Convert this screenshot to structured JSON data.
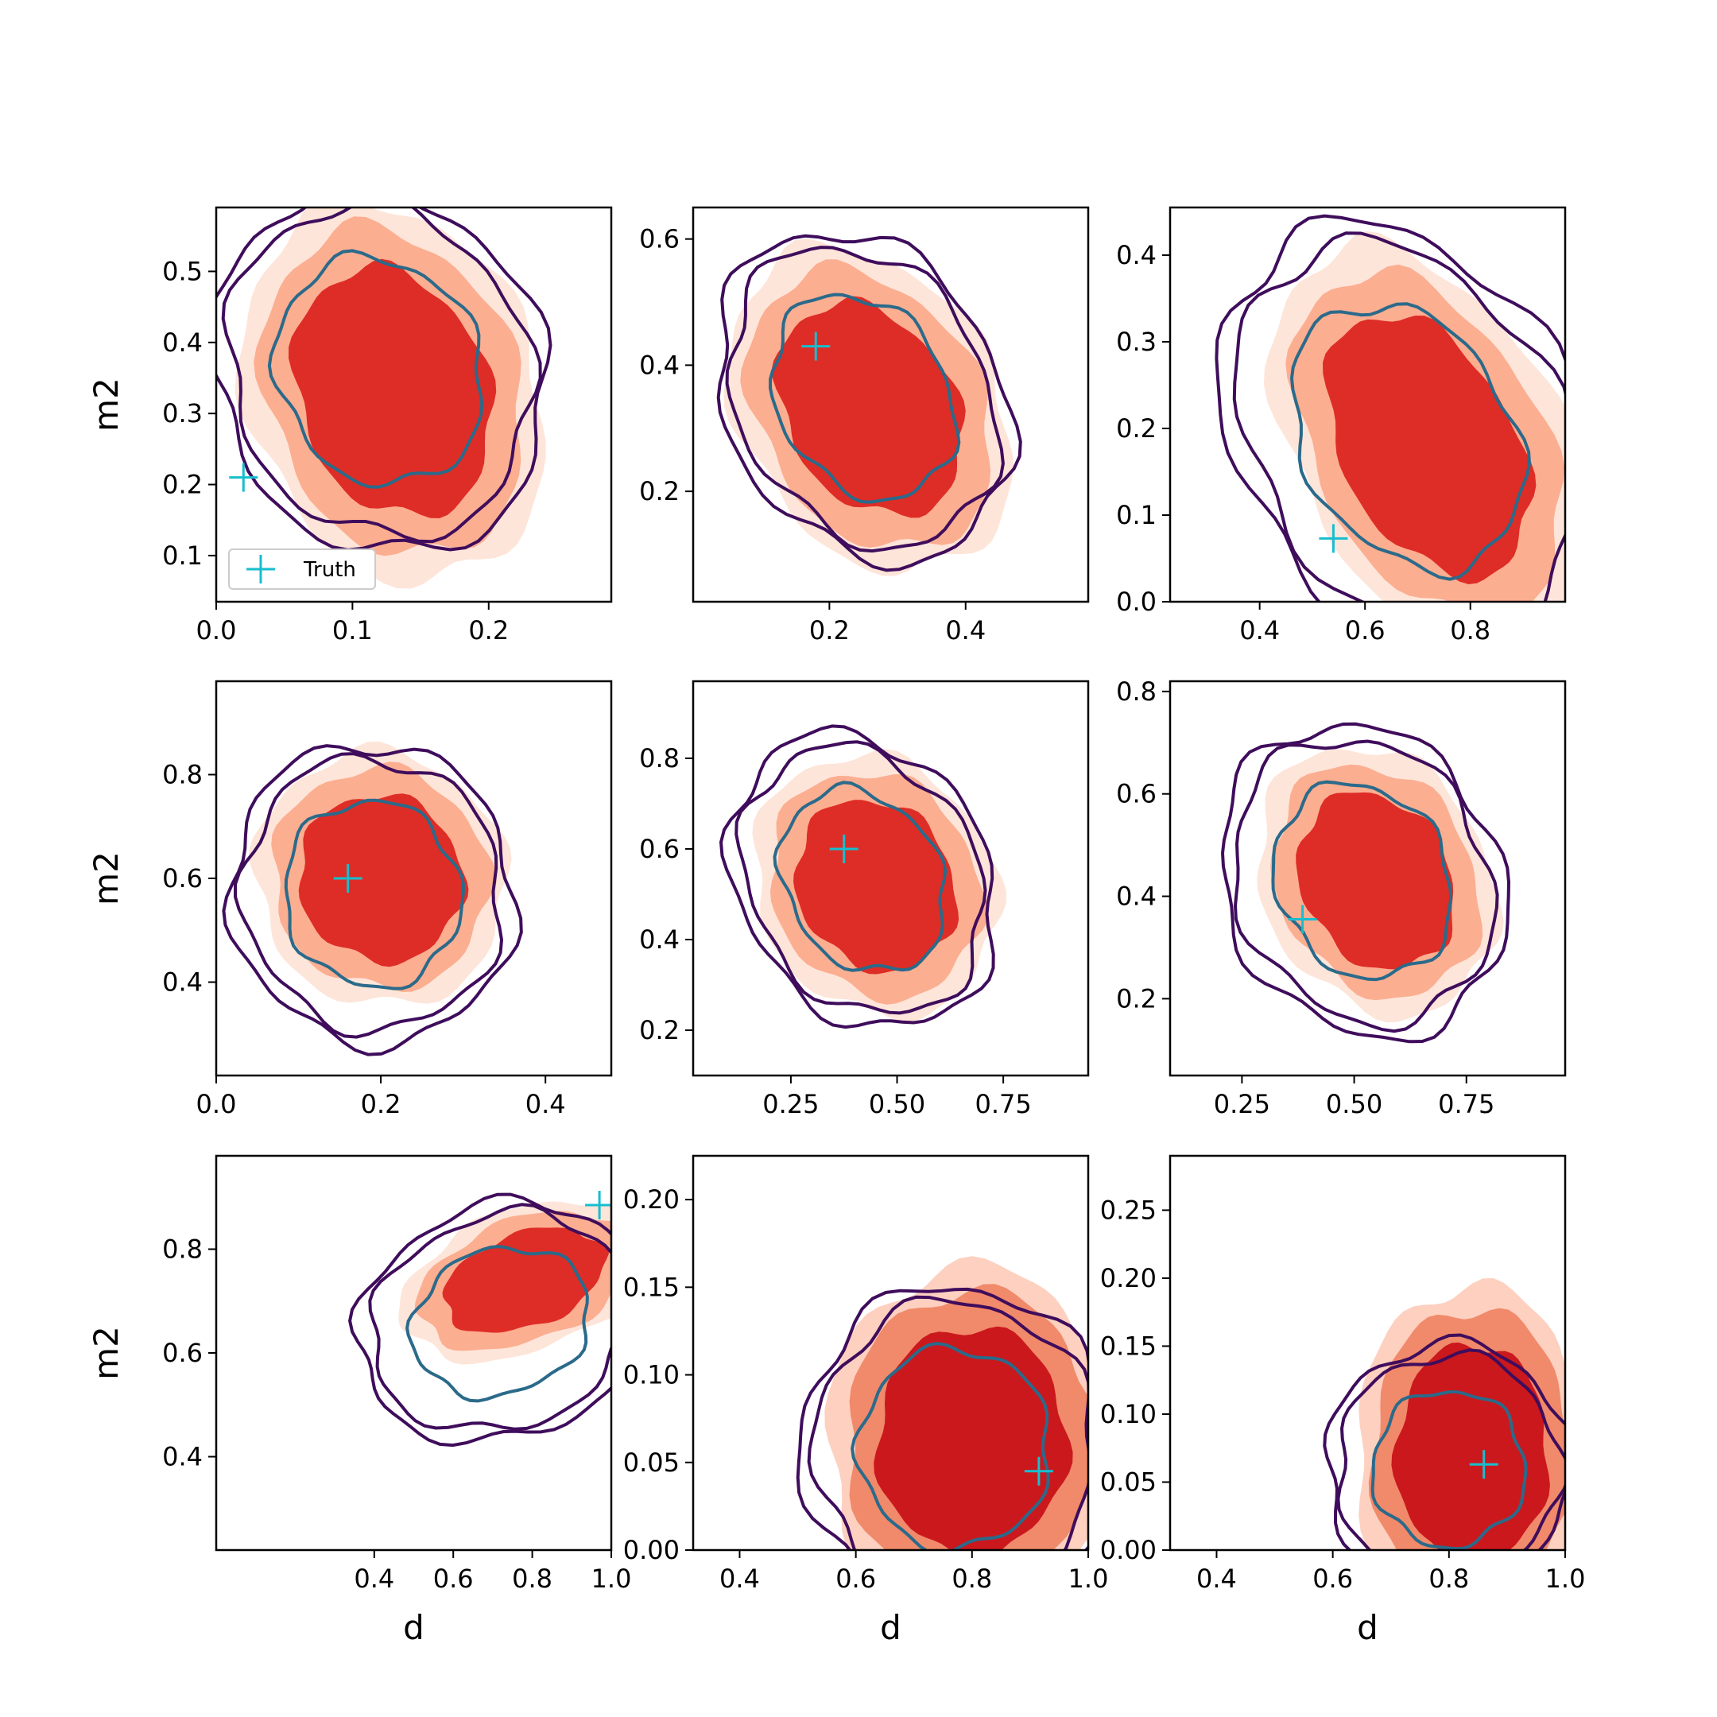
{
  "chart_data": {
    "type": "contour",
    "rows": 3,
    "cols": 3,
    "xlabel": "d",
    "ylabel": "m2",
    "colors": {
      "fill_levels": [
        "#fee5d9",
        "#fcae91",
        "#de2d26"
      ],
      "fill_bottom_right": [
        "#fdd0c0",
        "#f08a6a",
        "#cb181d"
      ],
      "contour_outer": "#3f0d5c",
      "contour_inner": "#2b6a8a",
      "truth_marker": "#17becf"
    },
    "legend": {
      "label": "Truth",
      "location": "lower-left",
      "panel": 0
    },
    "panels": [
      {
        "xlim": [
          0.0,
          0.29
        ],
        "ylim": [
          0.035,
          0.59
        ],
        "xticks": [
          0.0,
          0.1,
          0.2
        ],
        "xticklabels": [
          "0.0",
          "0.1",
          "0.2"
        ],
        "yticks": [
          0.1,
          0.2,
          0.3,
          0.4,
          0.5
        ],
        "yticklabels": [
          "0.1",
          "0.2",
          "0.3",
          "0.4",
          "0.5"
        ],
        "truth": [
          0.02,
          0.21
        ],
        "fill": {
          "cx": 0.13,
          "cy": 0.33,
          "sx": 0.085,
          "sy": 0.22,
          "rot": 0.35
        },
        "contour": {
          "cx": 0.12,
          "cy": 0.36,
          "sx": 0.09,
          "sy": 0.2,
          "rot": 0.45
        }
      },
      {
        "xlim": [
          0.0,
          0.58
        ],
        "ylim": [
          0.025,
          0.65
        ],
        "xticks": [
          0.2,
          0.4
        ],
        "xticklabels": [
          "0.2",
          "0.4"
        ],
        "yticks": [
          0.2,
          0.4,
          0.6
        ],
        "yticklabels": [
          "0.2",
          "0.4",
          "0.6"
        ],
        "truth": [
          0.18,
          0.43
        ],
        "fill": {
          "cx": 0.26,
          "cy": 0.33,
          "sx": 0.15,
          "sy": 0.22,
          "rot": 0.55
        },
        "contour": {
          "cx": 0.25,
          "cy": 0.35,
          "sx": 0.15,
          "sy": 0.21,
          "rot": 0.55
        }
      },
      {
        "xlim": [
          0.23,
          0.98
        ],
        "ylim": [
          0.0,
          0.455
        ],
        "xticks": [
          0.4,
          0.6,
          0.8
        ],
        "xticklabels": [
          "0.4",
          "0.6",
          "0.8"
        ],
        "yticks": [
          0.0,
          0.1,
          0.2,
          0.3,
          0.4
        ],
        "yticklabels": [
          "0.0",
          "0.1",
          "0.2",
          "0.3",
          "0.4"
        ],
        "truth": [
          0.54,
          0.073
        ],
        "fill": {
          "cx": 0.72,
          "cy": 0.18,
          "sx": 0.2,
          "sy": 0.2,
          "rot": 0.5
        },
        "contour": {
          "cx": 0.68,
          "cy": 0.19,
          "sx": 0.24,
          "sy": 0.2,
          "rot": 0.55
        }
      },
      {
        "xlim": [
          0.0,
          0.48
        ],
        "ylim": [
          0.22,
          0.98
        ],
        "xticks": [
          0.0,
          0.2,
          0.4
        ],
        "xticklabels": [
          "0.0",
          "0.2",
          "0.4"
        ],
        "yticks": [
          0.4,
          0.6,
          0.8
        ],
        "yticklabels": [
          "0.4",
          "0.6",
          "0.8"
        ],
        "truth": [
          0.16,
          0.6
        ],
        "fill": {
          "cx": 0.2,
          "cy": 0.6,
          "sx": 0.12,
          "sy": 0.2,
          "rot": 0.6
        },
        "contour": {
          "cx": 0.19,
          "cy": 0.57,
          "sx": 0.13,
          "sy": 0.22,
          "rot": 0.3
        }
      },
      {
        "xlim": [
          0.02,
          0.95
        ],
        "ylim": [
          0.1,
          0.97
        ],
        "xticks": [
          0.25,
          0.5,
          0.75
        ],
        "xticklabels": [
          "0.25",
          "0.50",
          "0.75"
        ],
        "yticks": [
          0.2,
          0.4,
          0.6,
          0.8
        ],
        "yticklabels": [
          "0.2",
          "0.4",
          "0.6",
          "0.8"
        ],
        "truth": [
          0.375,
          0.6
        ],
        "fill": {
          "cx": 0.45,
          "cy": 0.52,
          "sx": 0.22,
          "sy": 0.24,
          "rot": 0.55
        },
        "contour": {
          "cx": 0.42,
          "cy": 0.53,
          "sx": 0.22,
          "sy": 0.26,
          "rot": 0.55
        }
      },
      {
        "xlim": [
          0.09,
          0.97
        ],
        "ylim": [
          0.05,
          0.82
        ],
        "xticks": [
          0.25,
          0.5,
          0.75
        ],
        "xticklabels": [
          "0.25",
          "0.50",
          "0.75"
        ],
        "yticks": [
          0.2,
          0.4,
          0.6,
          0.8
        ],
        "yticklabels": [
          "0.2",
          "0.4",
          "0.6",
          "0.8"
        ],
        "truth": [
          0.385,
          0.355
        ],
        "fill": {
          "cx": 0.55,
          "cy": 0.43,
          "sx": 0.2,
          "sy": 0.22,
          "rot": 0.5
        },
        "contour": {
          "cx": 0.52,
          "cy": 0.43,
          "sx": 0.23,
          "sy": 0.24,
          "rot": 0.5
        }
      },
      {
        "xlim": [
          0.0,
          1.0
        ],
        "ylim": [
          0.22,
          0.98
        ],
        "xticks": [
          0.4,
          0.6,
          0.8,
          1.0
        ],
        "xticklabels": [
          "0.4",
          "0.6",
          "0.8",
          "1.0"
        ],
        "yticks": [
          0.4,
          0.6,
          0.8
        ],
        "yticklabels": [
          "0.4",
          "0.6",
          "0.8"
        ],
        "truth": [
          0.97,
          0.885
        ],
        "fill": {
          "cx": 0.78,
          "cy": 0.74,
          "sx": 0.26,
          "sy": 0.11,
          "rot": 0.35
        },
        "contour": {
          "cx": 0.72,
          "cy": 0.66,
          "sx": 0.28,
          "sy": 0.17,
          "rot": 0.35
        }
      },
      {
        "xlim": [
          0.32,
          1.0
        ],
        "ylim": [
          0.0,
          0.225
        ],
        "xticks": [
          0.4,
          0.6,
          0.8,
          1.0
        ],
        "xticklabels": [
          "0.4",
          "0.6",
          "0.8",
          "1.0"
        ],
        "yticks": [
          0.0,
          0.05,
          0.1,
          0.15,
          0.2
        ],
        "yticklabels": [
          "0.00",
          "0.05",
          "0.10",
          "0.15",
          "0.20"
        ],
        "truth": [
          0.915,
          0.045
        ],
        "fill": {
          "cx": 0.8,
          "cy": 0.062,
          "sx": 0.2,
          "sy": 0.08,
          "rot": 0.0
        },
        "contour": {
          "cx": 0.77,
          "cy": 0.058,
          "sx": 0.2,
          "sy": 0.07,
          "rot": 0.0
        }
      },
      {
        "xlim": [
          0.32,
          1.0
        ],
        "ylim": [
          0.0,
          0.29
        ],
        "xticks": [
          0.4,
          0.6,
          0.8,
          1.0
        ],
        "xticklabels": [
          "0.4",
          "0.6",
          "0.8",
          "1.0"
        ],
        "yticks": [
          0.0,
          0.05,
          0.1,
          0.15,
          0.2,
          0.25
        ],
        "yticklabels": [
          "0.00",
          "0.05",
          "0.10",
          "0.15",
          "0.20",
          "0.25"
        ],
        "truth": [
          0.86,
          0.063
        ],
        "fill": {
          "cx": 0.84,
          "cy": 0.07,
          "sx": 0.16,
          "sy": 0.1,
          "rot": 0.0
        },
        "contour": {
          "cx": 0.8,
          "cy": 0.06,
          "sx": 0.16,
          "sy": 0.07,
          "rot": 0.0
        }
      }
    ]
  }
}
